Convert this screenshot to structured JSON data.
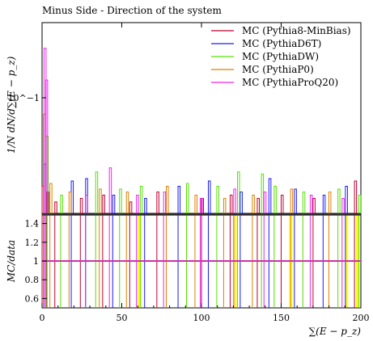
{
  "chart_data": {
    "type": "line",
    "title": "Minus Side - Direction of the system",
    "xlabel": "∑(E − p_z)",
    "ylabel_main": "1/N dN/d∑(E − p_z)",
    "ylabel_ratio": "MC/data",
    "xlim": [
      0,
      200
    ],
    "x_ticks": [
      0,
      50,
      100,
      150,
      200
    ],
    "y_main_scale": "log",
    "y_main_tick_label": "10^−1",
    "y_ratio_lim": [
      0.5,
      1.5
    ],
    "y_ratio_ticks": [
      "0.6",
      "0.8",
      "1",
      "1.2",
      "1.4"
    ],
    "legend_position": "top-right",
    "grid": false,
    "series": [
      {
        "name": "MC (Pythia8-MinBias)",
        "color": "#c00030",
        "spikes": [
          [
            0,
            0.02
          ],
          [
            3,
            0.018
          ],
          [
            8,
            0.015
          ],
          [
            24,
            0.016
          ],
          [
            38,
            0.017
          ],
          [
            55,
            0.015
          ],
          [
            72,
            0.018
          ],
          [
            100,
            0.016
          ],
          [
            118,
            0.017
          ],
          [
            135,
            0.016
          ],
          [
            150,
            0.017
          ],
          [
            170,
            0.016
          ],
          [
            196,
            0.022
          ]
        ]
      },
      {
        "name": "MC (PythiaD6T)",
        "color": "#1a1aff",
        "spikes": [
          [
            1,
            0.03
          ],
          [
            18,
            0.022
          ],
          [
            27,
            0.023
          ],
          [
            44,
            0.017
          ],
          [
            64,
            0.016
          ],
          [
            85,
            0.02
          ],
          [
            104,
            0.022
          ],
          [
            124,
            0.018
          ],
          [
            142,
            0.023
          ],
          [
            158,
            0.019
          ],
          [
            176,
            0.017
          ],
          [
            190,
            0.02
          ]
        ]
      },
      {
        "name": "MC (PythiaDW)",
        "color": "#55e000",
        "spikes": [
          [
            2,
            0.05
          ],
          [
            11,
            0.017
          ],
          [
            33,
            0.026
          ],
          [
            48,
            0.019
          ],
          [
            61,
            0.02
          ],
          [
            90,
            0.021
          ],
          [
            109,
            0.02
          ],
          [
            122,
            0.026
          ],
          [
            137,
            0.025
          ],
          [
            145,
            0.02
          ],
          [
            163,
            0.018
          ],
          [
            185,
            0.019
          ],
          [
            198,
            0.017
          ]
        ]
      },
      {
        "name": "MC (PythiaP0)",
        "color": "#e08000",
        "spikes": [
          [
            0,
            0.075
          ],
          [
            4,
            0.021
          ],
          [
            16,
            0.018
          ],
          [
            35,
            0.019
          ],
          [
            52,
            0.018
          ],
          [
            77,
            0.02
          ],
          [
            95,
            0.017
          ],
          [
            113,
            0.016
          ],
          [
            131,
            0.017
          ],
          [
            155,
            0.019
          ],
          [
            179,
            0.018
          ]
        ]
      },
      {
        "name": "MC (PythiaProQ20)",
        "color": "#ee22ee",
        "spikes": [
          [
            0,
            0.25
          ],
          [
            1,
            0.14
          ],
          [
            26,
            0.017
          ],
          [
            41,
            0.028
          ],
          [
            58,
            0.017
          ],
          [
            75,
            0.018
          ],
          [
            98,
            0.016
          ],
          [
            119,
            0.019
          ],
          [
            138,
            0.018
          ],
          [
            167,
            0.017
          ],
          [
            187,
            0.016
          ]
        ]
      }
    ],
    "ratio": {
      "reference_color": "#000000",
      "reference_value": 1.0,
      "band_color": "#ffff00",
      "lines": [
        {
          "color": "#c00030",
          "x": [
            0,
            3,
            8,
            24,
            38,
            55,
            72,
            100,
            118,
            135,
            150,
            170,
            196
          ]
        },
        {
          "color": "#1a1aff",
          "x": [
            1,
            18,
            27,
            44,
            64,
            85,
            104,
            124,
            142,
            158,
            176,
            190
          ]
        },
        {
          "color": "#55e000",
          "x": [
            2,
            11,
            33,
            48,
            61,
            90,
            109,
            122,
            137,
            145,
            163,
            185,
            198
          ]
        },
        {
          "color": "#e08000",
          "x": [
            0,
            4,
            16,
            35,
            52,
            77,
            95,
            113,
            131,
            155,
            179
          ]
        },
        {
          "color": "#ee22ee",
          "x": [
            0,
            1,
            26,
            41,
            58,
            75,
            98,
            119,
            138,
            167,
            187
          ]
        }
      ],
      "band_x": [
        60,
        120,
        155,
        190,
        197
      ]
    }
  }
}
